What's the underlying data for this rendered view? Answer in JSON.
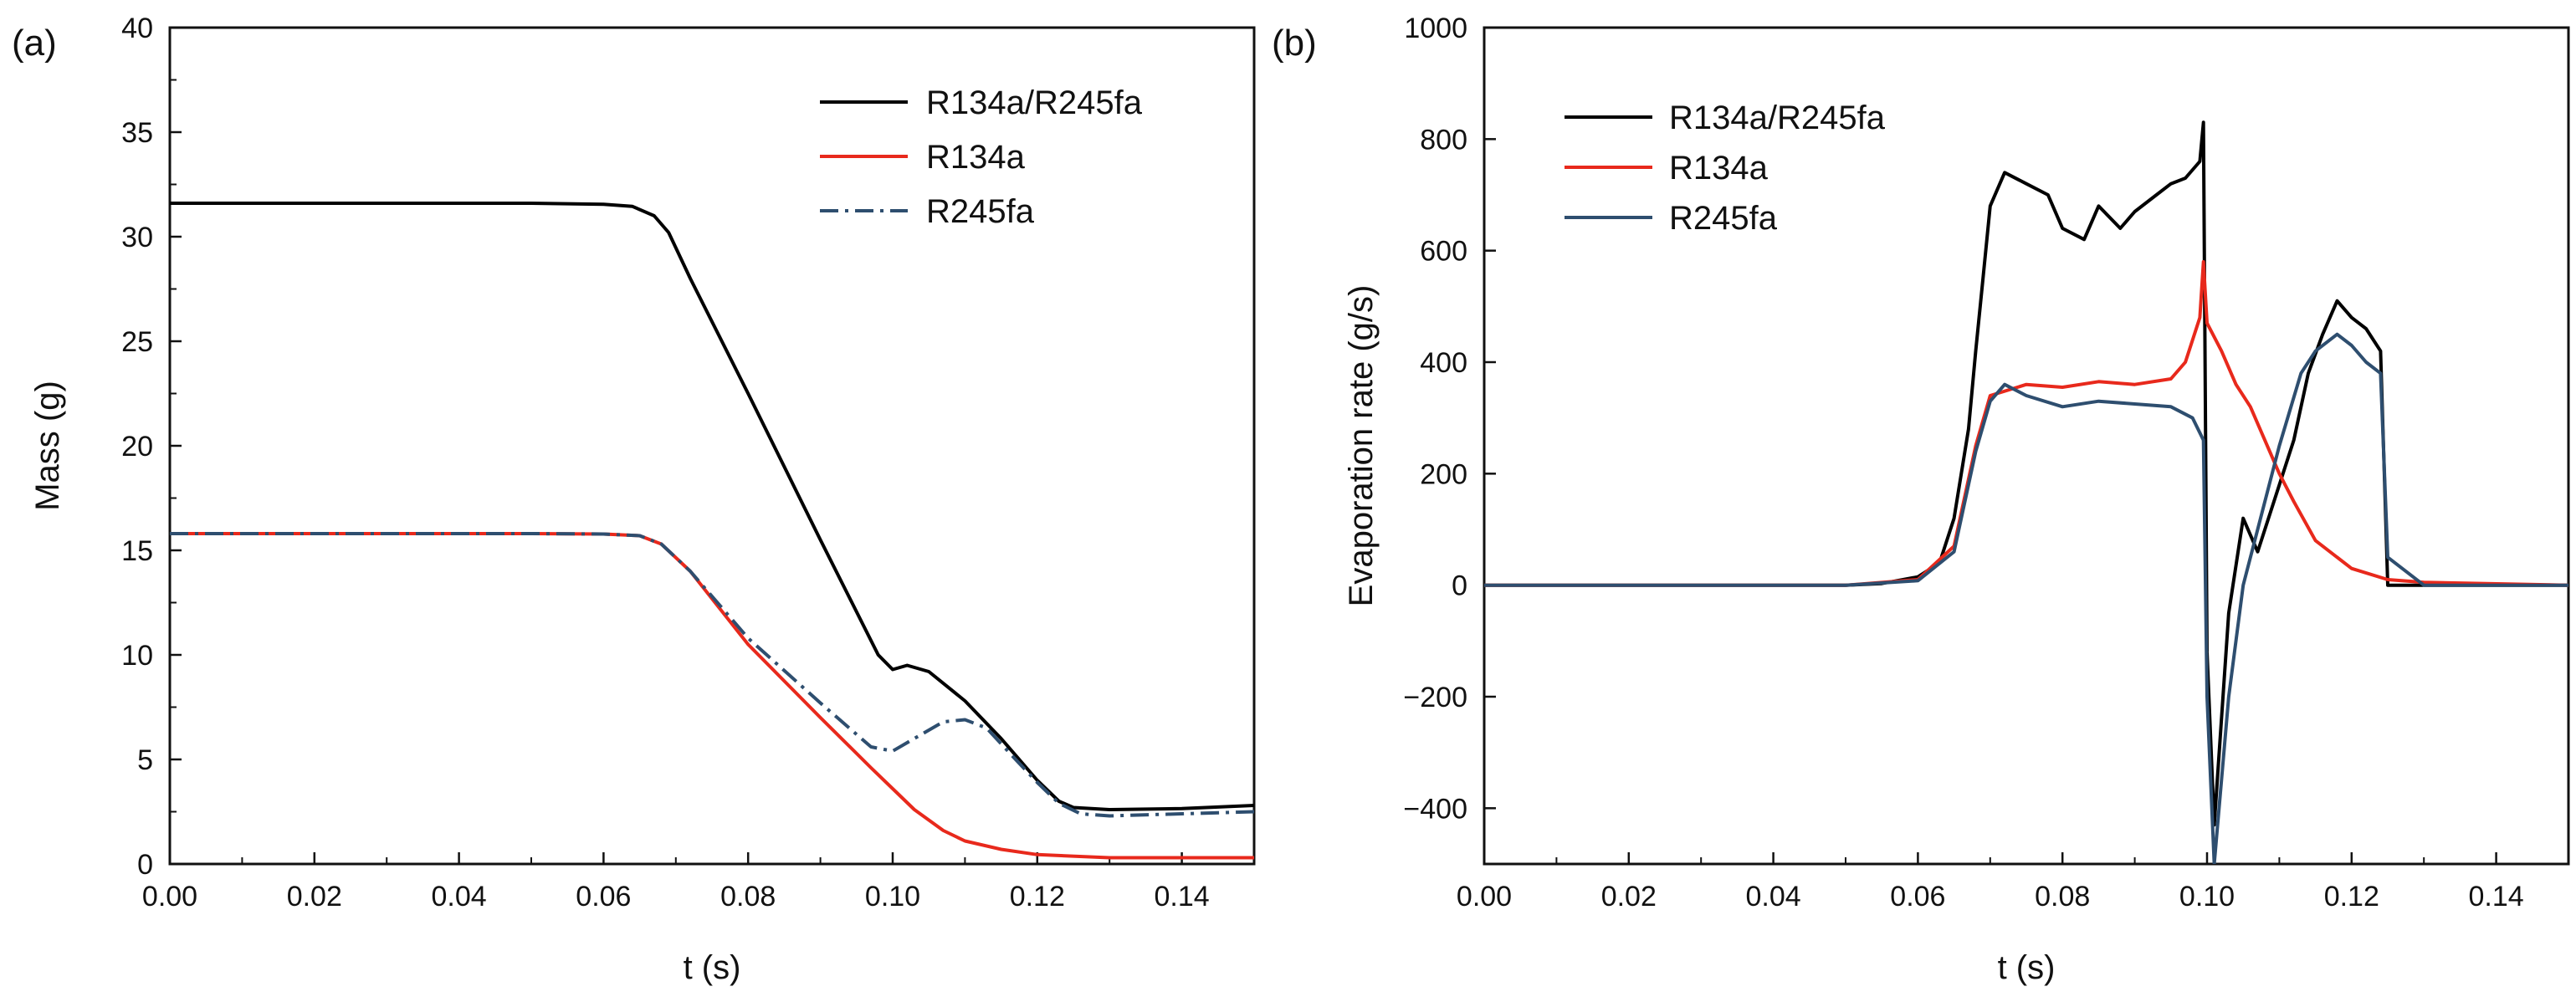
{
  "chart_data": [
    {
      "type": "line",
      "panel_label": "(a)",
      "xlabel": "t (s)",
      "ylabel": "Mass (g)",
      "xlim": [
        0,
        0.15
      ],
      "ylim": [
        0,
        40
      ],
      "xticks": [
        "0.00",
        "0.02",
        "0.04",
        "0.06",
        "0.08",
        "0.10",
        "0.12",
        "0.14"
      ],
      "yticks": [
        "0",
        "5",
        "10",
        "15",
        "20",
        "25",
        "30",
        "35",
        "40"
      ],
      "legend_position": "top-right",
      "series": [
        {
          "name": "R134a/R245fa",
          "color": "#000000",
          "style": "solid",
          "points": [
            [
              0,
              31.6
            ],
            [
              0.05,
              31.6
            ],
            [
              0.06,
              31.55
            ],
            [
              0.064,
              31.45
            ],
            [
              0.067,
              31.0
            ],
            [
              0.069,
              30.2
            ],
            [
              0.072,
              28.0
            ],
            [
              0.08,
              22.5
            ],
            [
              0.09,
              15.5
            ],
            [
              0.098,
              10.0
            ],
            [
              0.1,
              9.3
            ],
            [
              0.102,
              9.5
            ],
            [
              0.105,
              9.2
            ],
            [
              0.11,
              7.8
            ],
            [
              0.115,
              6.0
            ],
            [
              0.12,
              4.0
            ],
            [
              0.123,
              3.0
            ],
            [
              0.125,
              2.7
            ],
            [
              0.13,
              2.6
            ],
            [
              0.14,
              2.65
            ],
            [
              0.15,
              2.8
            ]
          ]
        },
        {
          "name": "R134a",
          "color": "#e8291c",
          "style": "solid",
          "points": [
            [
              0,
              15.8
            ],
            [
              0.05,
              15.8
            ],
            [
              0.06,
              15.78
            ],
            [
              0.065,
              15.7
            ],
            [
              0.068,
              15.3
            ],
            [
              0.072,
              14.0
            ],
            [
              0.08,
              10.5
            ],
            [
              0.09,
              7.0
            ],
            [
              0.097,
              4.6
            ],
            [
              0.1,
              3.6
            ],
            [
              0.103,
              2.6
            ],
            [
              0.107,
              1.6
            ],
            [
              0.11,
              1.1
            ],
            [
              0.115,
              0.7
            ],
            [
              0.12,
              0.45
            ],
            [
              0.13,
              0.3
            ],
            [
              0.15,
              0.3
            ]
          ]
        },
        {
          "name": "R245fa",
          "color": "#2e4e6f",
          "style": "dashdot",
          "points": [
            [
              0,
              15.8
            ],
            [
              0.05,
              15.8
            ],
            [
              0.06,
              15.78
            ],
            [
              0.065,
              15.7
            ],
            [
              0.068,
              15.3
            ],
            [
              0.072,
              14.0
            ],
            [
              0.08,
              10.8
            ],
            [
              0.09,
              7.7
            ],
            [
              0.097,
              5.6
            ],
            [
              0.1,
              5.4
            ],
            [
              0.103,
              6.0
            ],
            [
              0.107,
              6.8
            ],
            [
              0.11,
              6.9
            ],
            [
              0.113,
              6.5
            ],
            [
              0.117,
              5.0
            ],
            [
              0.12,
              3.9
            ],
            [
              0.123,
              2.9
            ],
            [
              0.126,
              2.4
            ],
            [
              0.13,
              2.3
            ],
            [
              0.14,
              2.4
            ],
            [
              0.15,
              2.5
            ]
          ]
        }
      ]
    },
    {
      "type": "line",
      "panel_label": "(b)",
      "xlabel": "t (s)",
      "ylabel": "Evaporation rate  (g/s)",
      "xlim": [
        0,
        0.15
      ],
      "ylim": [
        -500,
        1000
      ],
      "xticks": [
        "0.00",
        "0.02",
        "0.04",
        "0.06",
        "0.08",
        "0.10",
        "0.12",
        "0.14"
      ],
      "yticks": [
        "−400",
        "−200",
        "0",
        "200",
        "400",
        "600",
        "800",
        "1000"
      ],
      "legend_position": "top-left",
      "series": [
        {
          "name": "R134a/R245fa",
          "color": "#000000",
          "style": "solid",
          "points": [
            [
              0,
              0
            ],
            [
              0.05,
              0
            ],
            [
              0.055,
              3
            ],
            [
              0.06,
              15
            ],
            [
              0.063,
              40
            ],
            [
              0.065,
              120
            ],
            [
              0.067,
              280
            ],
            [
              0.068,
              420
            ],
            [
              0.069,
              550
            ],
            [
              0.07,
              680
            ],
            [
              0.072,
              740
            ],
            [
              0.075,
              720
            ],
            [
              0.078,
              700
            ],
            [
              0.08,
              640
            ],
            [
              0.083,
              620
            ],
            [
              0.085,
              680
            ],
            [
              0.088,
              640
            ],
            [
              0.09,
              670
            ],
            [
              0.093,
              700
            ],
            [
              0.095,
              720
            ],
            [
              0.097,
              730
            ],
            [
              0.099,
              760
            ],
            [
              0.0995,
              830
            ],
            [
              0.1,
              -120
            ],
            [
              0.101,
              -430
            ],
            [
              0.103,
              -50
            ],
            [
              0.105,
              120
            ],
            [
              0.107,
              60
            ],
            [
              0.11,
              180
            ],
            [
              0.112,
              260
            ],
            [
              0.114,
              380
            ],
            [
              0.116,
              450
            ],
            [
              0.118,
              510
            ],
            [
              0.12,
              480
            ],
            [
              0.122,
              460
            ],
            [
              0.124,
              420
            ],
            [
              0.125,
              0
            ],
            [
              0.13,
              0
            ],
            [
              0.14,
              0
            ],
            [
              0.15,
              0
            ]
          ]
        },
        {
          "name": "R134a",
          "color": "#e8291c",
          "style": "solid",
          "points": [
            [
              0,
              0
            ],
            [
              0.05,
              0
            ],
            [
              0.06,
              10
            ],
            [
              0.065,
              70
            ],
            [
              0.068,
              250
            ],
            [
              0.07,
              340
            ],
            [
              0.075,
              360
            ],
            [
              0.08,
              355
            ],
            [
              0.085,
              365
            ],
            [
              0.09,
              360
            ],
            [
              0.095,
              370
            ],
            [
              0.097,
              400
            ],
            [
              0.099,
              480
            ],
            [
              0.0995,
              580
            ],
            [
              0.1,
              470
            ],
            [
              0.102,
              420
            ],
            [
              0.104,
              360
            ],
            [
              0.106,
              320
            ],
            [
              0.108,
              260
            ],
            [
              0.11,
              200
            ],
            [
              0.112,
              150
            ],
            [
              0.115,
              80
            ],
            [
              0.12,
              30
            ],
            [
              0.125,
              10
            ],
            [
              0.13,
              5
            ],
            [
              0.15,
              0
            ]
          ]
        },
        {
          "name": "R245fa",
          "color": "#2e4e6f",
          "style": "solid",
          "points": [
            [
              0,
              0
            ],
            [
              0.05,
              0
            ],
            [
              0.06,
              8
            ],
            [
              0.065,
              60
            ],
            [
              0.068,
              240
            ],
            [
              0.07,
              330
            ],
            [
              0.072,
              360
            ],
            [
              0.075,
              340
            ],
            [
              0.08,
              320
            ],
            [
              0.085,
              330
            ],
            [
              0.09,
              325
            ],
            [
              0.095,
              320
            ],
            [
              0.098,
              300
            ],
            [
              0.0995,
              260
            ],
            [
              0.1,
              -200
            ],
            [
              0.101,
              -500
            ],
            [
              0.103,
              -200
            ],
            [
              0.105,
              0
            ],
            [
              0.107,
              100
            ],
            [
              0.11,
              250
            ],
            [
              0.113,
              380
            ],
            [
              0.115,
              420
            ],
            [
              0.118,
              450
            ],
            [
              0.12,
              430
            ],
            [
              0.122,
              400
            ],
            [
              0.124,
              380
            ],
            [
              0.125,
              50
            ],
            [
              0.13,
              0
            ],
            [
              0.14,
              0
            ],
            [
              0.15,
              0
            ]
          ]
        }
      ]
    }
  ]
}
